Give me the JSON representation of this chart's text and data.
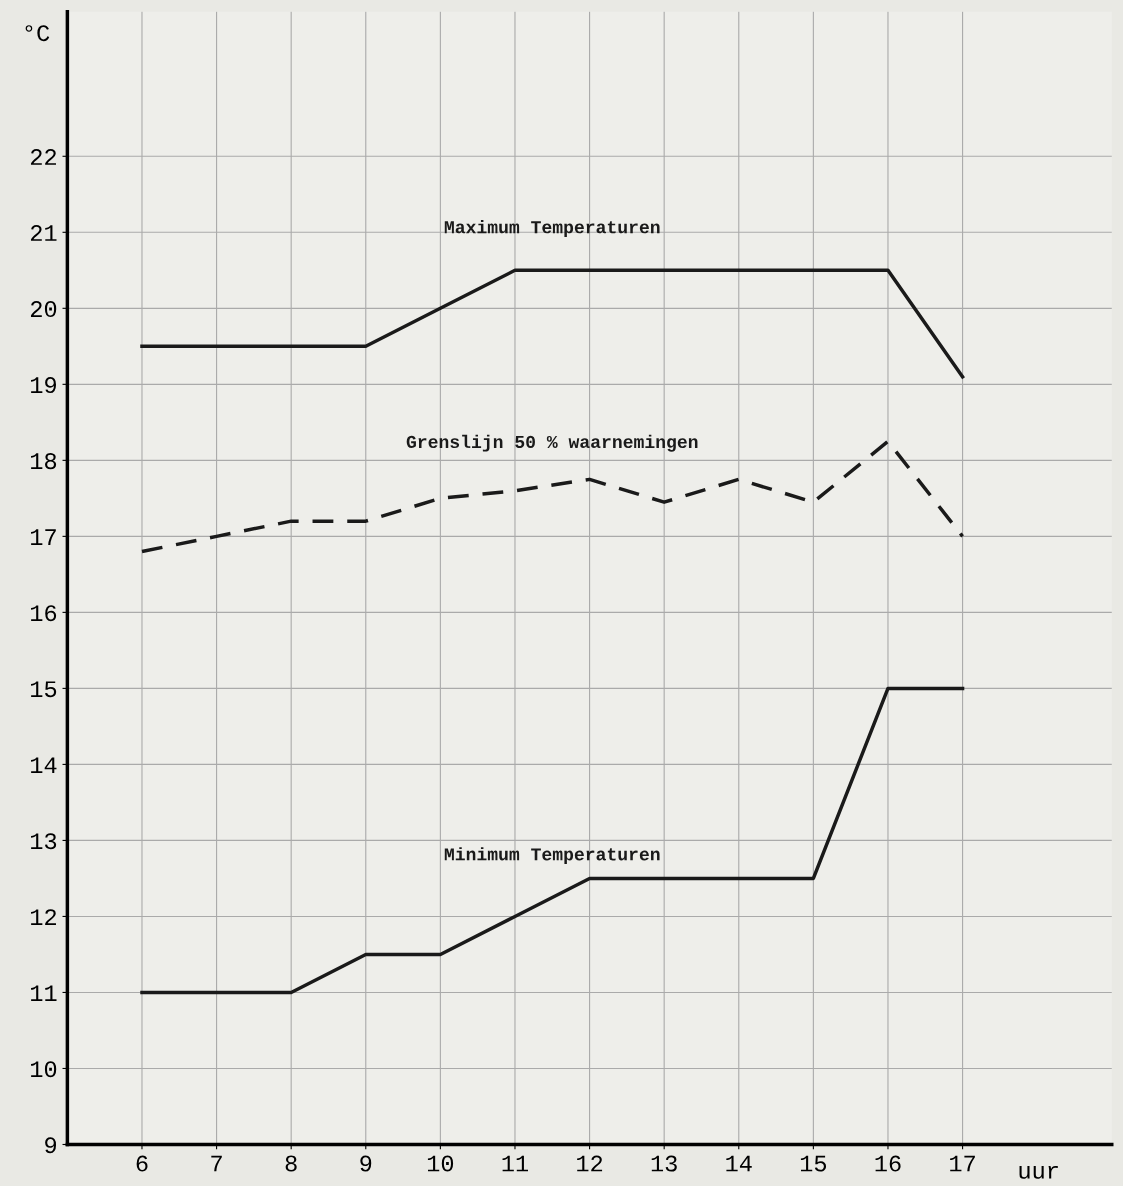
{
  "chart_data": {
    "type": "line",
    "xlabel": "uur",
    "ylabel": "°C",
    "x": [
      6,
      7,
      8,
      9,
      10,
      11,
      12,
      13,
      14,
      15,
      16,
      17
    ],
    "series": [
      {
        "name": "Maximum Temperaturen",
        "color": "#1a1a1a",
        "line_style": "solid",
        "values": [
          19.5,
          19.5,
          19.5,
          19.5,
          20.0,
          20.5,
          20.5,
          20.5,
          20.5,
          20.5,
          20.5,
          19.1
        ]
      },
      {
        "name": "Grenslijn 50 % waarnemingen",
        "color": "#1a1a1a",
        "line_style": "dashed",
        "values": [
          16.8,
          17.0,
          17.2,
          17.2,
          17.5,
          17.6,
          17.75,
          17.45,
          17.75,
          17.45,
          18.25,
          17.0
        ]
      },
      {
        "name": "Minimum Temperaturen",
        "color": "#1a1a1a",
        "line_style": "solid",
        "values": [
          11.0,
          11.0,
          11.0,
          11.5,
          11.5,
          12.0,
          12.5,
          12.5,
          12.5,
          12.5,
          15.0,
          15.0
        ]
      }
    ],
    "xlim": [
      5,
      19
    ],
    "ylim": [
      9,
      23.9
    ],
    "xticks": [
      6,
      7,
      8,
      9,
      10,
      11,
      12,
      13,
      14,
      15,
      16,
      17
    ],
    "yticks": [
      9,
      10,
      11,
      12,
      13,
      14,
      15,
      16,
      17,
      18,
      19,
      20,
      21,
      22
    ],
    "grid": true,
    "legend": false,
    "marker": "none"
  }
}
